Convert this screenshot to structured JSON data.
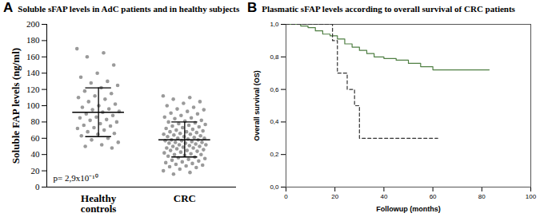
{
  "chart_data": [
    {
      "type": "scatter",
      "panel": "A",
      "title": "Soluble sFAP levels in AdC patients and in healthy subjects",
      "ylabel": "Soluble FAP levels (ng/ml)",
      "categories": [
        "Healthy controls",
        "CRC"
      ],
      "values": [
        [
          170,
          165,
          160,
          150,
          140,
          135,
          130,
          128,
          125,
          122,
          118,
          115,
          112,
          110,
          108,
          105,
          102,
          100,
          98,
          96,
          95,
          93,
          92,
          90,
          88,
          86,
          85,
          83,
          82,
          80,
          78,
          76,
          75,
          73,
          72,
          70,
          68,
          66,
          65,
          63,
          60,
          58,
          55,
          52,
          50,
          48
        ],
        [
          112,
          110,
          108,
          105,
          103,
          100,
          98,
          96,
          95,
          93,
          91,
          90,
          88,
          86,
          85,
          84,
          82,
          81,
          80,
          79,
          78,
          77,
          76,
          75,
          74,
          73,
          72,
          71,
          70,
          69,
          68,
          68,
          67,
          66,
          65,
          65,
          64,
          63,
          62,
          62,
          61,
          60,
          60,
          59,
          58,
          58,
          57,
          57,
          56,
          55,
          55,
          54,
          54,
          53,
          52,
          52,
          51,
          50,
          50,
          49,
          48,
          48,
          47,
          46,
          45,
          45,
          44,
          43,
          42,
          41,
          40,
          40,
          39,
          38,
          37,
          36,
          35,
          34,
          33,
          32,
          31,
          30,
          29,
          28,
          27,
          26,
          25,
          24,
          22,
          20,
          18,
          16
        ]
      ],
      "means": [
        92,
        58
      ],
      "sd_low": [
        62,
        37
      ],
      "sd_high": [
        122,
        80
      ],
      "color": "#9a9a9a",
      "ylim": [
        0,
        200
      ],
      "yticks": [
        0,
        20,
        40,
        60,
        80,
        100,
        120,
        140,
        160,
        180,
        200
      ],
      "annotations": [
        "p= 2,9x10⁻¹⁰"
      ]
    },
    {
      "type": "line",
      "panel": "B",
      "title": "Plasmatic sFAP levels according to overall survival of CRC patients",
      "xlabel": "Followup (months)",
      "ylabel": "Overall survival (OS)",
      "series": [
        {
          "color": "#4f7f43",
          "line_style": "solid",
          "x": [
            0,
            3,
            6,
            9,
            12,
            15,
            18,
            21,
            24,
            27,
            30,
            33,
            36,
            40,
            45,
            50,
            55,
            60,
            83
          ],
          "values": [
            1.0,
            1.0,
            0.99,
            0.98,
            0.96,
            0.94,
            0.93,
            0.91,
            0.88,
            0.86,
            0.84,
            0.82,
            0.8,
            0.79,
            0.78,
            0.76,
            0.74,
            0.72,
            0.72
          ]
        },
        {
          "color": "#333333",
          "line_style": "dashed",
          "x": [
            0,
            19,
            21,
            25,
            28,
            30,
            62
          ],
          "values": [
            1.0,
            0.9,
            0.7,
            0.6,
            0.5,
            0.3,
            0.3
          ]
        }
      ],
      "xlim": [
        0,
        100
      ],
      "xticks": [
        0,
        20,
        40,
        60,
        80,
        100
      ],
      "ylim": [
        0,
        1.0
      ],
      "yticks": [
        {
          "value": 0,
          "label": "0,0"
        },
        {
          "value": 0.2,
          "label": "0,2"
        },
        {
          "value": 0.4,
          "label": "0,4"
        },
        {
          "value": 0.6,
          "label": "0,6"
        },
        {
          "value": 0.8,
          "label": "0,8"
        },
        {
          "value": 1.0,
          "label": "1,0"
        }
      ]
    }
  ]
}
